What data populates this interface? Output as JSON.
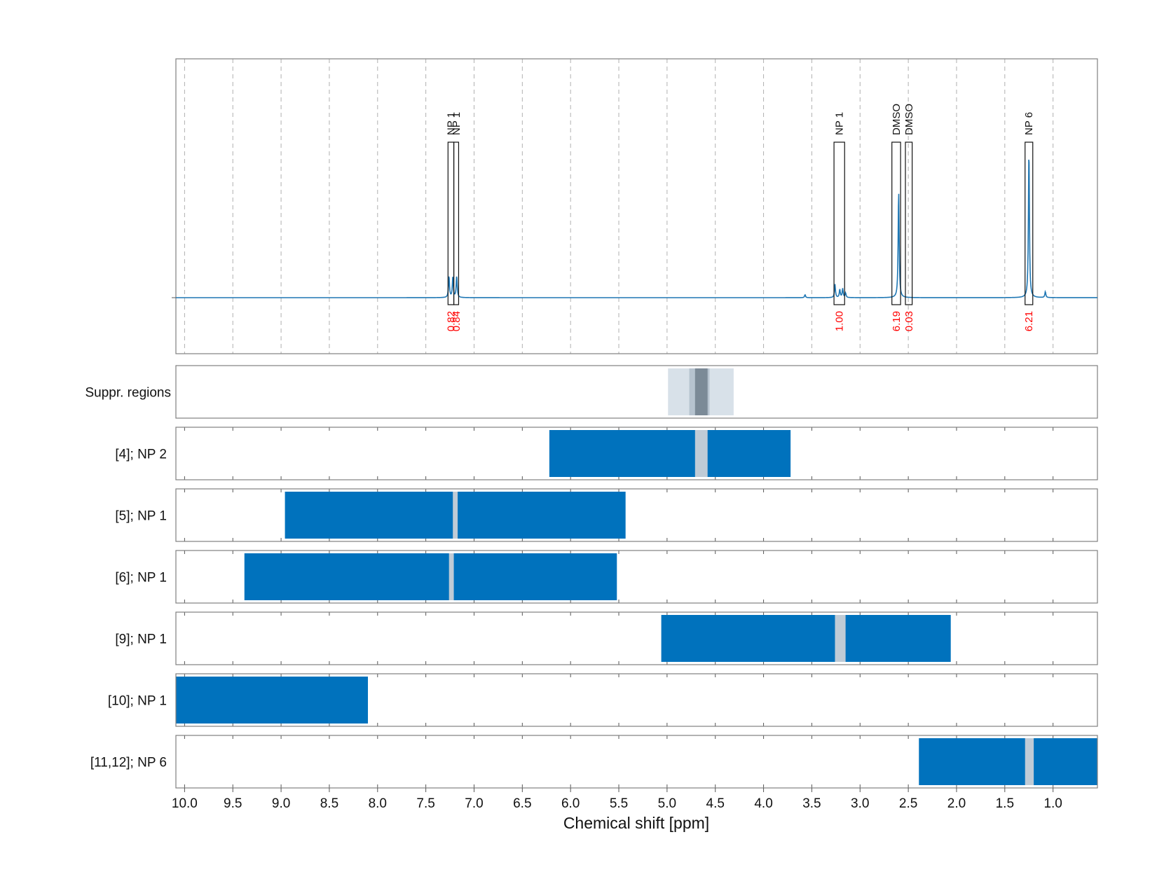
{
  "chart_data": {
    "type": "nmr_spectrum",
    "xlabel": "Chemical shift [ppm]",
    "x_axis_reversed": true,
    "xlim": [
      10.09,
      0.54
    ],
    "xticks": [
      "10.0",
      "9.5",
      "9.0",
      "8.5",
      "8.0",
      "7.5",
      "7.0",
      "6.5",
      "6.0",
      "5.5",
      "5.0",
      "4.5",
      "4.0",
      "3.5",
      "3.0",
      "2.5",
      "2.0",
      "1.5",
      "1.0"
    ],
    "grid": true,
    "colors": {
      "spectrum": "#1f77b4",
      "region": "#0072bd",
      "gap": "#bfcbd6",
      "suppr_light": "#d8e1e9",
      "suppr_mid": "#b6c3cf",
      "suppr_dark": "#7b8a97",
      "integral_text": "#ff0000"
    },
    "spectrum": {
      "baseline": 0.0,
      "peaks": [
        {
          "ppm": 7.26,
          "height": 0.145
        },
        {
          "ppm": 7.22,
          "height": 0.14
        },
        {
          "ppm": 7.18,
          "height": 0.145
        },
        {
          "ppm": 3.57,
          "height": 0.02
        },
        {
          "ppm": 3.26,
          "height": 0.09
        },
        {
          "ppm": 3.21,
          "height": 0.055
        },
        {
          "ppm": 3.18,
          "height": 0.06
        },
        {
          "ppm": 3.15,
          "height": 0.03
        },
        {
          "ppm": 2.6,
          "height": 0.72
        },
        {
          "ppm": 1.25,
          "height": 1.0
        },
        {
          "ppm": 1.08,
          "height": 0.04
        }
      ]
    },
    "peak_annotations": [
      {
        "label": "NP 1",
        "ppm_left": 7.27,
        "ppm_right": 7.21,
        "integral": "0.82"
      },
      {
        "label": "NP 1",
        "ppm_left": 7.21,
        "ppm_right": 7.16,
        "integral": "0.84"
      },
      {
        "label": "NP 1",
        "ppm_left": 3.27,
        "ppm_right": 3.16,
        "integral": "1.00"
      },
      {
        "label": "DMSO",
        "ppm_left": 2.67,
        "ppm_right": 2.58,
        "integral": "6.19"
      },
      {
        "label": "DMSO",
        "ppm_left": 2.53,
        "ppm_right": 2.46,
        "integral": "0.03"
      },
      {
        "label": "NP 6",
        "ppm_left": 1.29,
        "ppm_right": 1.21,
        "integral": "6.21"
      }
    ],
    "suppression": {
      "label": "Suppr. regions",
      "bands": [
        {
          "from": 4.99,
          "to": 4.31,
          "tone": "light"
        },
        {
          "from": 4.77,
          "to": 4.56,
          "tone": "mid"
        },
        {
          "from": 4.71,
          "to": 4.58,
          "tone": "dark"
        }
      ]
    },
    "regions": [
      {
        "label": "[4]; NP 2",
        "from": 6.22,
        "to": 3.72,
        "gap": [
          4.71,
          4.58
        ]
      },
      {
        "label": "[5]; NP 1",
        "from": 8.96,
        "to": 5.43,
        "gap": [
          7.22,
          7.17
        ]
      },
      {
        "label": "[6]; NP 1",
        "from": 9.38,
        "to": 5.52,
        "gap": [
          7.26,
          7.21
        ]
      },
      {
        "label": "[9]; NP 1",
        "from": 5.06,
        "to": 2.06,
        "gap": [
          3.26,
          3.15
        ]
      },
      {
        "label": "[10]; NP 1",
        "from": 10.09,
        "to": 8.1,
        "gap": null
      },
      {
        "label": "[11,12]; NP 6",
        "from": 2.39,
        "to": 0.54,
        "gap": [
          1.29,
          1.2
        ]
      }
    ]
  }
}
